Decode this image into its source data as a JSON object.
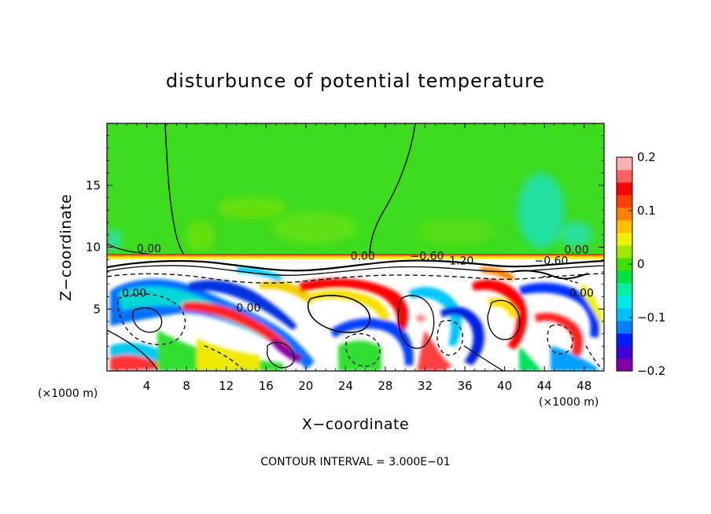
{
  "chart_data": {
    "type": "heatmap",
    "title": "disturbunce of potential temperature",
    "xlabel": "X−coordinate",
    "ylabel": "Z−coordinate",
    "x_unit_left": "(×1000 m)",
    "x_unit_right": "(×1000 m)",
    "x_ticks": [
      4,
      8,
      12,
      16,
      20,
      24,
      28,
      32,
      36,
      40,
      44,
      48
    ],
    "y_ticks": [
      5,
      10,
      15
    ],
    "xlim": [
      0,
      50
    ],
    "ylim": [
      0,
      20
    ],
    "colorbar": {
      "range": [
        -0.2,
        0.2
      ],
      "tick_values": [
        -0.2,
        -0.1,
        0,
        0.1,
        0.2
      ],
      "tick_labels": [
        "−0.2",
        "−0.1",
        "0",
        "0.1",
        "0.2"
      ],
      "colors": [
        "#8000a8",
        "#4000d8",
        "#0020ff",
        "#0080ff",
        "#00c0ff",
        "#00e8e8",
        "#00f0a0",
        "#00e040",
        "#40e000",
        "#a0e800",
        "#f0f000",
        "#ffc000",
        "#ff8000",
        "#ff4000",
        "#ff0000",
        "#ff6060",
        "#ffb0b0"
      ]
    },
    "inversion_height": 9.5,
    "contour_labels": [
      {
        "x": 3,
        "z": 9.6,
        "text": "0.00"
      },
      {
        "x": 1.5,
        "z": 6.0,
        "text": "0.00"
      },
      {
        "x": 13,
        "z": 4.8,
        "text": "0.00"
      },
      {
        "x": 24.5,
        "z": 9.0,
        "text": "0.00"
      },
      {
        "x": 30.5,
        "z": 9.0,
        "text": "−0.60"
      },
      {
        "x": 33.5,
        "z": 8.6,
        "text": "−1.20"
      },
      {
        "x": 43,
        "z": 8.6,
        "text": "−0.60"
      },
      {
        "x": 46,
        "z": 9.5,
        "text": "0.00"
      },
      {
        "x": 46.5,
        "z": 6.0,
        "text": "0.00"
      }
    ],
    "footer": "CONTOUR INTERVAL = 3.000E−01"
  }
}
